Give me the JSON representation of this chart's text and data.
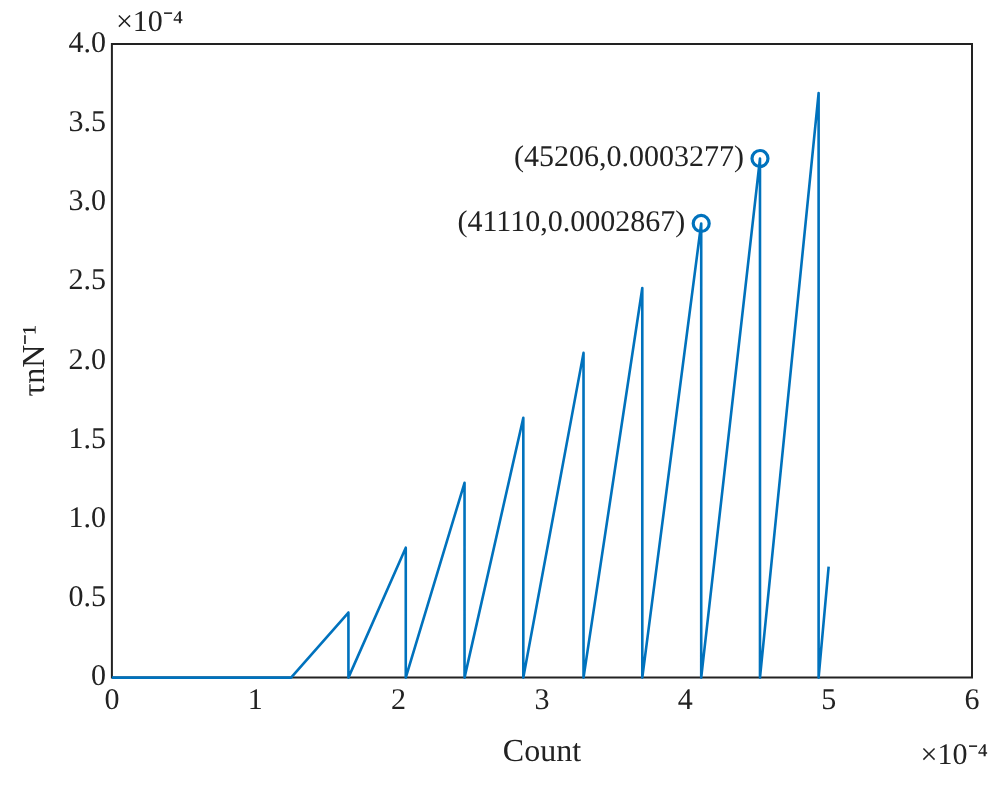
{
  "chart_data": {
    "type": "line",
    "xlabel": "Count",
    "ylabel": "τnN⁻¹",
    "xlim": [
      0,
      6
    ],
    "xticks": [
      0,
      1,
      2,
      3,
      4,
      5,
      6
    ],
    "ylim": [
      0,
      4
    ],
    "yticks": [
      0,
      {
        "value": 0.5,
        "label": "0.5"
      },
      {
        "value": 1,
        "label": "1.0"
      },
      {
        "value": 1.5,
        "label": "1.5"
      },
      {
        "value": 2,
        "label": "2.0"
      },
      {
        "value": 2.5,
        "label": "2.5"
      },
      {
        "value": 3,
        "label": "3.0"
      },
      {
        "value": 3.5,
        "label": "3.5"
      },
      {
        "value": 4,
        "label": "4.0"
      }
    ],
    "grid": false,
    "legend": false,
    "series": [
      {
        "type": "line",
        "color": "#0072bd",
        "marker": "none",
        "x": [
          0,
          1.25,
          1.65,
          1.65,
          2.05,
          2.05,
          2.46,
          2.46,
          2.87,
          2.87,
          3.29,
          3.29,
          3.7,
          3.7,
          4.111,
          4.111,
          4.521,
          4.521,
          4.93,
          4.93,
          5.0
        ],
        "values": [
          0,
          0,
          0.41,
          0,
          0.82,
          0,
          1.23,
          0,
          1.64,
          0,
          2.05,
          0,
          2.46,
          0,
          2.867,
          0,
          3.277,
          0,
          3.69,
          0,
          0.7
        ]
      },
      {
        "type": "scatter",
        "color": "#0072bd",
        "marker": "circle",
        "x": [
          4.111,
          4.521
        ],
        "values": [
          2.867,
          3.277
        ]
      }
    ],
    "annotations": [
      "×10⁻⁴",
      "×10⁻⁴",
      {
        "text": "(41110,0.0002867)",
        "x": 4.111,
        "y": 2.867
      },
      {
        "text": "(45206,0.0003277)",
        "x": 4.521,
        "y": 3.277
      }
    ]
  }
}
